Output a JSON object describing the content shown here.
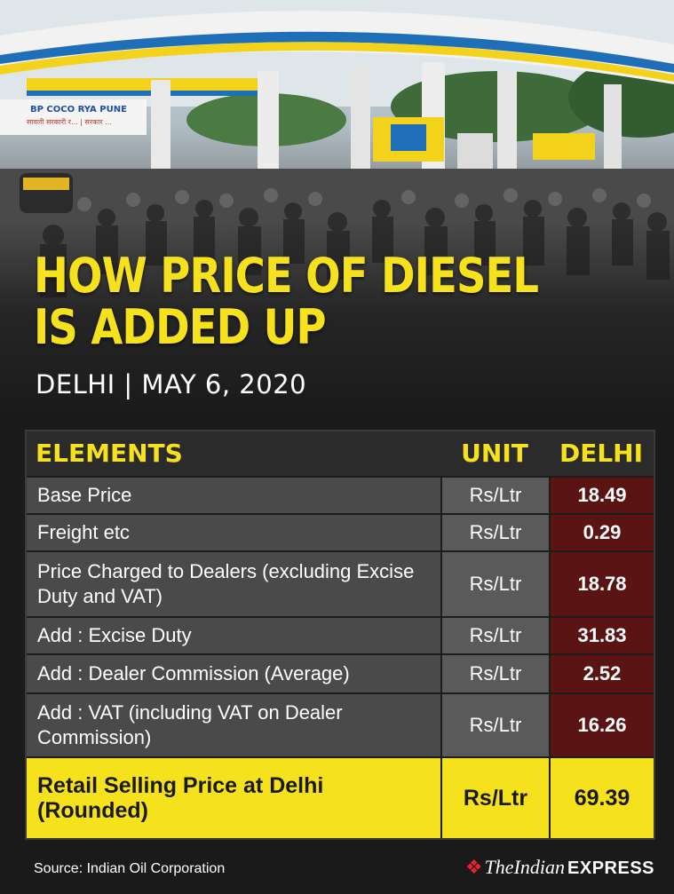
{
  "photo": {
    "station_sign": "BP COCO RYA PUNE",
    "station_sign_sub": "सावली सरकारी र... | सरकार ...",
    "description_icon": "petrol-pump-crowd-photo"
  },
  "headline": {
    "line1": "HOW PRICE OF DIESEL",
    "line2": "IS ADDED UP"
  },
  "subhead": "DELHI | MAY 6, 2020",
  "table": {
    "headers": {
      "elements": "ELEMENTS",
      "unit": "UNIT",
      "city": "DELHI"
    },
    "rows": [
      {
        "element": "Base Price",
        "unit": "Rs/Ltr",
        "value": "18.49"
      },
      {
        "element": "Freight etc",
        "unit": "Rs/Ltr",
        "value": "0.29"
      },
      {
        "element": "Price Charged to Dealers (excluding Excise Duty and VAT)",
        "unit": "Rs/Ltr",
        "value": "18.78"
      },
      {
        "element": "Add : Excise Duty",
        "unit": "Rs/Ltr",
        "value": "31.83"
      },
      {
        "element": "Add : Dealer Commission (Average)",
        "unit": "Rs/Ltr",
        "value": "2.52"
      },
      {
        "element": "Add : VAT (including VAT on Dealer Commission)",
        "unit": "Rs/Ltr",
        "value": "16.26"
      }
    ],
    "total": {
      "element": "Retail Selling Price at Delhi (Rounded)",
      "unit": "Rs/Ltr",
      "value": "69.39"
    }
  },
  "footer": {
    "source": "Source: Indian Oil Corporation",
    "brand_the": "The",
    "brand_indian": "Indian",
    "brand_express": "EXPRESS",
    "brand_icon": "flame-icon"
  },
  "colors": {
    "accent_yellow": "#f5e11c",
    "value_maroon": "#5a1414",
    "background": "#1a1a1a",
    "brand_red": "#e3262a"
  }
}
